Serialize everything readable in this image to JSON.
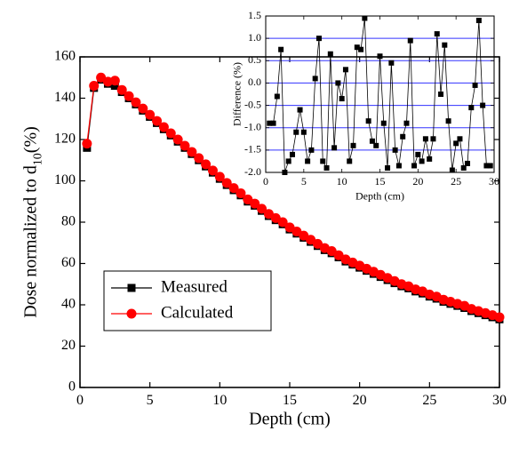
{
  "chart_data": [
    {
      "type": "line",
      "x_label": "Depth (cm)",
      "y_label": [
        "Dose normalized to d",
        "10",
        "(%)"
      ],
      "xlim": [
        0,
        30
      ],
      "xticks": [
        0,
        5,
        10,
        15,
        20,
        25,
        30
      ],
      "ylim": [
        0,
        160
      ],
      "yticks": [
        0,
        20,
        40,
        60,
        80,
        100,
        120,
        140,
        160
      ],
      "legend": "center left",
      "x": [
        0.5,
        1,
        1.5,
        2,
        2.5,
        3,
        3.5,
        4,
        4.5,
        5,
        5.5,
        6,
        6.5,
        7,
        7.5,
        8,
        8.5,
        9,
        9.5,
        10,
        10.5,
        11,
        11.5,
        12,
        12.5,
        13,
        13.5,
        14,
        14.5,
        15,
        15.5,
        16,
        16.5,
        17,
        17.5,
        18,
        18.5,
        19,
        19.5,
        20,
        20.5,
        21,
        21.5,
        22,
        22.5,
        23,
        23.5,
        24,
        24.5,
        25,
        25.5,
        26,
        26.5,
        27,
        27.5,
        28,
        28.5,
        29,
        29.5,
        30
      ],
      "series": [
        {
          "name": "Measured",
          "color": "#000000",
          "marker": "square",
          "values": [
            116,
            145,
            149,
            147,
            146,
            143,
            140,
            137,
            134,
            131,
            128,
            125,
            122,
            119,
            116,
            113,
            110,
            107,
            104,
            101,
            98,
            95.5,
            93,
            90,
            88,
            85.5,
            83,
            81,
            79,
            76.5,
            74.5,
            72.5,
            70.5,
            68.5,
            66.5,
            65,
            63,
            61,
            59.5,
            58,
            56.5,
            55,
            53.5,
            52,
            50.5,
            49,
            48,
            46.5,
            45.5,
            44,
            43,
            41.5,
            40.5,
            39.5,
            38.5,
            37,
            36,
            35,
            34,
            33
          ]
        },
        {
          "name": "Calculated",
          "color": "#ff0000",
          "marker": "circle",
          "values": [
            118,
            146,
            150,
            148,
            148.5,
            144,
            141,
            138,
            135,
            132,
            129,
            126,
            123,
            120,
            117,
            114,
            111,
            108,
            105,
            102,
            99,
            96.5,
            94,
            91,
            89,
            86.5,
            84,
            82,
            80,
            77.5,
            75.5,
            73.5,
            71.5,
            69.5,
            67.5,
            66,
            64,
            62,
            60.5,
            59,
            57.5,
            56,
            54.5,
            53,
            51.5,
            50,
            49,
            47.5,
            46.5,
            45,
            44,
            42.5,
            41.5,
            40.5,
            39.5,
            38,
            37,
            36,
            35,
            34
          ]
        }
      ]
    },
    {
      "type": "line",
      "x_label": "Depth (cm)",
      "y_label": "Difference (%)",
      "xlim": [
        0,
        30
      ],
      "xticks": [
        0,
        5,
        10,
        15,
        20,
        25,
        30
      ],
      "ylim": [
        -2,
        1.5
      ],
      "yticks": [
        {
          "value": -2,
          "label": "-2.0"
        },
        -1.5,
        {
          "value": -1,
          "label": "-1.0"
        },
        -0.5,
        {
          "value": 0,
          "label": "0.0"
        },
        0.5,
        {
          "value": 1,
          "label": "1.0"
        },
        1.5
      ],
      "grid": true,
      "grid_color": "#3333ff",
      "x": [
        0.5,
        1,
        1.5,
        2,
        2.5,
        3,
        3.5,
        4,
        4.5,
        5,
        5.5,
        6,
        6.5,
        7,
        7.5,
        8,
        8.5,
        9,
        9.5,
        10,
        10.5,
        11,
        11.5,
        12,
        12.5,
        13,
        13.5,
        14,
        14.5,
        15,
        15.5,
        16,
        16.5,
        17,
        17.5,
        18,
        18.5,
        19,
        19.5,
        20,
        20.5,
        21,
        21.5,
        22,
        22.5,
        23,
        23.5,
        24,
        24.5,
        25,
        25.5,
        26,
        26.5,
        27,
        27.5,
        28,
        28.5,
        29,
        29.5
      ],
      "series": [
        {
          "color": "#000000",
          "marker": "square",
          "values": [
            -0.9,
            -0.9,
            -0.3,
            0.75,
            -2.0,
            -1.75,
            -1.6,
            -1.1,
            -0.6,
            -1.1,
            -1.75,
            -1.5,
            0.1,
            1.0,
            -1.75,
            -1.9,
            0.65,
            -1.45,
            0.0,
            -0.35,
            0.3,
            -1.75,
            -1.4,
            0.8,
            0.75,
            1.45,
            -0.85,
            -1.3,
            -1.4,
            0.6,
            -0.9,
            -1.9,
            0.45,
            -1.5,
            -1.85,
            -1.2,
            -0.9,
            0.95,
            -1.85,
            -1.6,
            -1.75,
            -1.25,
            -1.7,
            -1.25,
            1.1,
            -0.25,
            0.85,
            -0.85,
            -1.95,
            -1.35,
            -1.25,
            -1.9,
            -1.8,
            -0.55,
            -0.05,
            1.4,
            -0.5,
            -1.85,
            -1.85
          ]
        }
      ]
    }
  ]
}
